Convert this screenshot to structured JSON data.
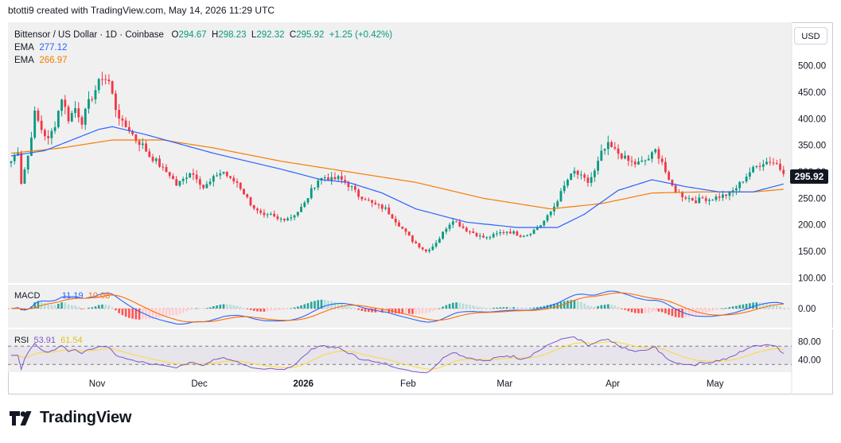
{
  "header": {
    "caption": "btotti9 created with TradingView.com, May 14, 2026 11:29 UTC"
  },
  "legend": {
    "symbol": "Bittensor / US Dollar · 1D · Coinbase",
    "open_label": "O",
    "open": "294.67",
    "high_label": "H",
    "high": "298.23",
    "low_label": "L",
    "low": "292.32",
    "close_label": "C",
    "close": "295.92",
    "change": "+1.25 (+0.42%)",
    "ema1_label": "EMA",
    "ema1_value": "277.12",
    "ema2_label": "EMA",
    "ema2_value": "266.97"
  },
  "macd_legend": {
    "label": "MACD",
    "macd": "11.19",
    "signal": "10.08"
  },
  "rsi_legend": {
    "label": "RSI",
    "rsi": "53.91",
    "rsi_ma": "61.54"
  },
  "currency_button": "USD",
  "last_price_tag": "295.92",
  "footer": {
    "brand": "TradingView"
  },
  "colors": {
    "up": "#089981",
    "down": "#f23645",
    "ema_fast": "#2962ff",
    "ema_slow": "#f57c00",
    "macd_line": "#2962ff",
    "signal_line": "#ff6d00",
    "rsi_line": "#7e57c2",
    "rsi_ma": "#fdd835",
    "pane_bg": "#f0f0f0"
  },
  "chart_data": {
    "type": "candlestick",
    "title": "Bittensor / US Dollar · 1D · Coinbase",
    "price_axis": {
      "ticks": [
        "500.00",
        "450.00",
        "400.00",
        "350.00",
        "300.00",
        "250.00",
        "200.00",
        "150.00",
        "100.00"
      ],
      "range": [
        90,
        540
      ]
    },
    "macd_axis": {
      "ticks": [
        "0.00"
      ]
    },
    "rsi_axis": {
      "ticks": [
        "80.00",
        "40.00"
      ],
      "bands": [
        70,
        30
      ]
    },
    "time_axis": {
      "labels": [
        "Nov",
        "Dec",
        "2026",
        "Feb",
        "Mar",
        "Apr",
        "May"
      ]
    },
    "close_path": [
      [
        0,
        320
      ],
      [
        2,
        340
      ],
      [
        3,
        280
      ],
      [
        5,
        330
      ],
      [
        7,
        410
      ],
      [
        9,
        380
      ],
      [
        11,
        360
      ],
      [
        13,
        390
      ],
      [
        15,
        440
      ],
      [
        17,
        400
      ],
      [
        19,
        420
      ],
      [
        21,
        395
      ],
      [
        23,
        430
      ],
      [
        25,
        455
      ],
      [
        27,
        480
      ],
      [
        29,
        470
      ],
      [
        31,
        420
      ],
      [
        33,
        390
      ],
      [
        35,
        380
      ],
      [
        37,
        360
      ],
      [
        39,
        350
      ],
      [
        41,
        330
      ],
      [
        43,
        320
      ],
      [
        45,
        305
      ],
      [
        47,
        295
      ],
      [
        49,
        275
      ],
      [
        51,
        285
      ],
      [
        53,
        300
      ],
      [
        55,
        290
      ],
      [
        57,
        270
      ],
      [
        59,
        280
      ],
      [
        61,
        295
      ],
      [
        63,
        300
      ],
      [
        65,
        285
      ],
      [
        67,
        280
      ],
      [
        69,
        260
      ],
      [
        71,
        240
      ],
      [
        73,
        225
      ],
      [
        75,
        215
      ],
      [
        77,
        218
      ],
      [
        79,
        210
      ],
      [
        81,
        212
      ],
      [
        83,
        215
      ],
      [
        85,
        225
      ],
      [
        87,
        240
      ],
      [
        89,
        265
      ],
      [
        91,
        285
      ],
      [
        93,
        290
      ],
      [
        95,
        285
      ],
      [
        97,
        288
      ],
      [
        99,
        280
      ],
      [
        101,
        270
      ],
      [
        103,
        255
      ],
      [
        105,
        250
      ],
      [
        107,
        240
      ],
      [
        109,
        235
      ],
      [
        111,
        230
      ],
      [
        113,
        215
      ],
      [
        115,
        200
      ],
      [
        117,
        185
      ],
      [
        119,
        170
      ],
      [
        121,
        160
      ],
      [
        123,
        150
      ],
      [
        125,
        160
      ],
      [
        127,
        175
      ],
      [
        129,
        195
      ],
      [
        131,
        210
      ],
      [
        133,
        200
      ],
      [
        135,
        190
      ],
      [
        137,
        185
      ],
      [
        139,
        178
      ],
      [
        141,
        175
      ],
      [
        143,
        180
      ],
      [
        145,
        185
      ],
      [
        147,
        188
      ],
      [
        149,
        185
      ],
      [
        151,
        180
      ],
      [
        153,
        182
      ],
      [
        155,
        190
      ],
      [
        157,
        200
      ],
      [
        159,
        215
      ],
      [
        161,
        235
      ],
      [
        163,
        260
      ],
      [
        165,
        285
      ],
      [
        167,
        300
      ],
      [
        169,
        290
      ],
      [
        171,
        280
      ],
      [
        173,
        300
      ],
      [
        175,
        335
      ],
      [
        177,
        350
      ],
      [
        179,
        340
      ],
      [
        181,
        330
      ],
      [
        183,
        320
      ],
      [
        185,
        315
      ],
      [
        187,
        318
      ],
      [
        189,
        325
      ],
      [
        191,
        340
      ],
      [
        193,
        320
      ],
      [
        195,
        280
      ],
      [
        197,
        265
      ],
      [
        199,
        255
      ],
      [
        201,
        250
      ],
      [
        203,
        245
      ],
      [
        205,
        250
      ],
      [
        207,
        248
      ],
      [
        209,
        252
      ],
      [
        211,
        255
      ],
      [
        213,
        258
      ],
      [
        215,
        270
      ],
      [
        217,
        285
      ],
      [
        219,
        300
      ],
      [
        221,
        310
      ],
      [
        223,
        318
      ],
      [
        225,
        320
      ],
      [
        227,
        315
      ],
      [
        229,
        296
      ]
    ],
    "ema_fast_path": [
      [
        0,
        330
      ],
      [
        10,
        340
      ],
      [
        20,
        365
      ],
      [
        26,
        380
      ],
      [
        30,
        385
      ],
      [
        40,
        370
      ],
      [
        60,
        335
      ],
      [
        80,
        305
      ],
      [
        92,
        285
      ],
      [
        100,
        280
      ],
      [
        110,
        260
      ],
      [
        120,
        230
      ],
      [
        135,
        205
      ],
      [
        150,
        195
      ],
      [
        162,
        195
      ],
      [
        170,
        220
      ],
      [
        180,
        265
      ],
      [
        190,
        285
      ],
      [
        200,
        272
      ],
      [
        210,
        262
      ],
      [
        220,
        262
      ],
      [
        229,
        277
      ]
    ],
    "ema_slow_path": [
      [
        0,
        335
      ],
      [
        15,
        345
      ],
      [
        30,
        360
      ],
      [
        45,
        360
      ],
      [
        60,
        345
      ],
      [
        80,
        320
      ],
      [
        100,
        300
      ],
      [
        120,
        280
      ],
      [
        140,
        250
      ],
      [
        160,
        230
      ],
      [
        175,
        240
      ],
      [
        190,
        260
      ],
      [
        205,
        262
      ],
      [
        220,
        262
      ],
      [
        229,
        267
      ]
    ],
    "rsi_value": 53.91,
    "rsi_ma_value": 61.54,
    "macd_value": 11.19,
    "signal_value": 10.08
  }
}
